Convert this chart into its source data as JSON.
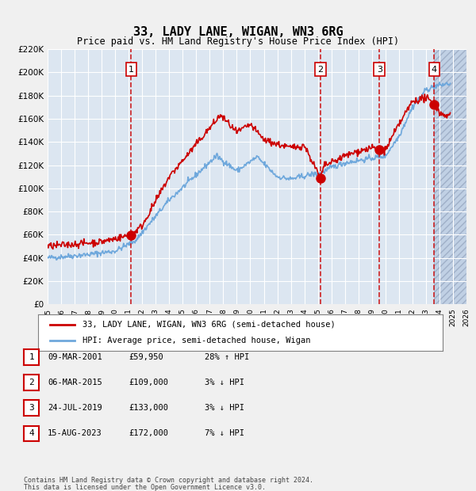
{
  "title": "33, LADY LANE, WIGAN, WN3 6RG",
  "subtitle": "Price paid vs. HM Land Registry's House Price Index (HPI)",
  "legend_line1": "33, LADY LANE, WIGAN, WN3 6RG (semi-detached house)",
  "legend_line2": "HPI: Average price, semi-detached house, Wigan",
  "footer1": "Contains HM Land Registry data © Crown copyright and database right 2024.",
  "footer2": "This data is licensed under the Open Government Licence v3.0.",
  "xmin": 1995,
  "xmax": 2026,
  "ymin": 0,
  "ymax": 220000,
  "yticks": [
    0,
    20000,
    40000,
    60000,
    80000,
    100000,
    120000,
    140000,
    160000,
    180000,
    200000,
    220000
  ],
  "ytick_labels": [
    "£0",
    "£20K",
    "£40K",
    "£60K",
    "£80K",
    "£100K",
    "£120K",
    "£140K",
    "£160K",
    "£180K",
    "£200K",
    "£220K"
  ],
  "xtick_years": [
    1995,
    1996,
    1997,
    1998,
    1999,
    2000,
    2001,
    2002,
    2003,
    2004,
    2005,
    2006,
    2007,
    2008,
    2009,
    2010,
    2011,
    2012,
    2013,
    2014,
    2015,
    2016,
    2017,
    2018,
    2019,
    2020,
    2021,
    2022,
    2023,
    2024,
    2025,
    2026
  ],
  "sale_dates": [
    2001.19,
    2015.18,
    2019.56,
    2023.62
  ],
  "sale_prices": [
    59950,
    109000,
    133000,
    172000
  ],
  "sale_labels": [
    "1",
    "2",
    "3",
    "4"
  ],
  "future_start": 2023.62,
  "hpi_color": "#6fa8dc",
  "red_line_color": "#cc0000",
  "sale_dot_color": "#cc0000",
  "bg_color": "#dce6f1",
  "future_bg_color": "#c9d9ea",
  "grid_color": "#ffffff",
  "vline_color": "#cc0000",
  "box_color": "#cc0000",
  "table_rows": [
    {
      "num": "1",
      "date": "09-MAR-2001",
      "price": "£59,950",
      "hpi": "28% ↑ HPI"
    },
    {
      "num": "2",
      "date": "06-MAR-2015",
      "price": "£109,000",
      "hpi": "3% ↓ HPI"
    },
    {
      "num": "3",
      "date": "24-JUL-2019",
      "price": "£133,000",
      "hpi": "3% ↓ HPI"
    },
    {
      "num": "4",
      "date": "15-AUG-2023",
      "price": "£172,000",
      "hpi": "7% ↓ HPI"
    }
  ]
}
